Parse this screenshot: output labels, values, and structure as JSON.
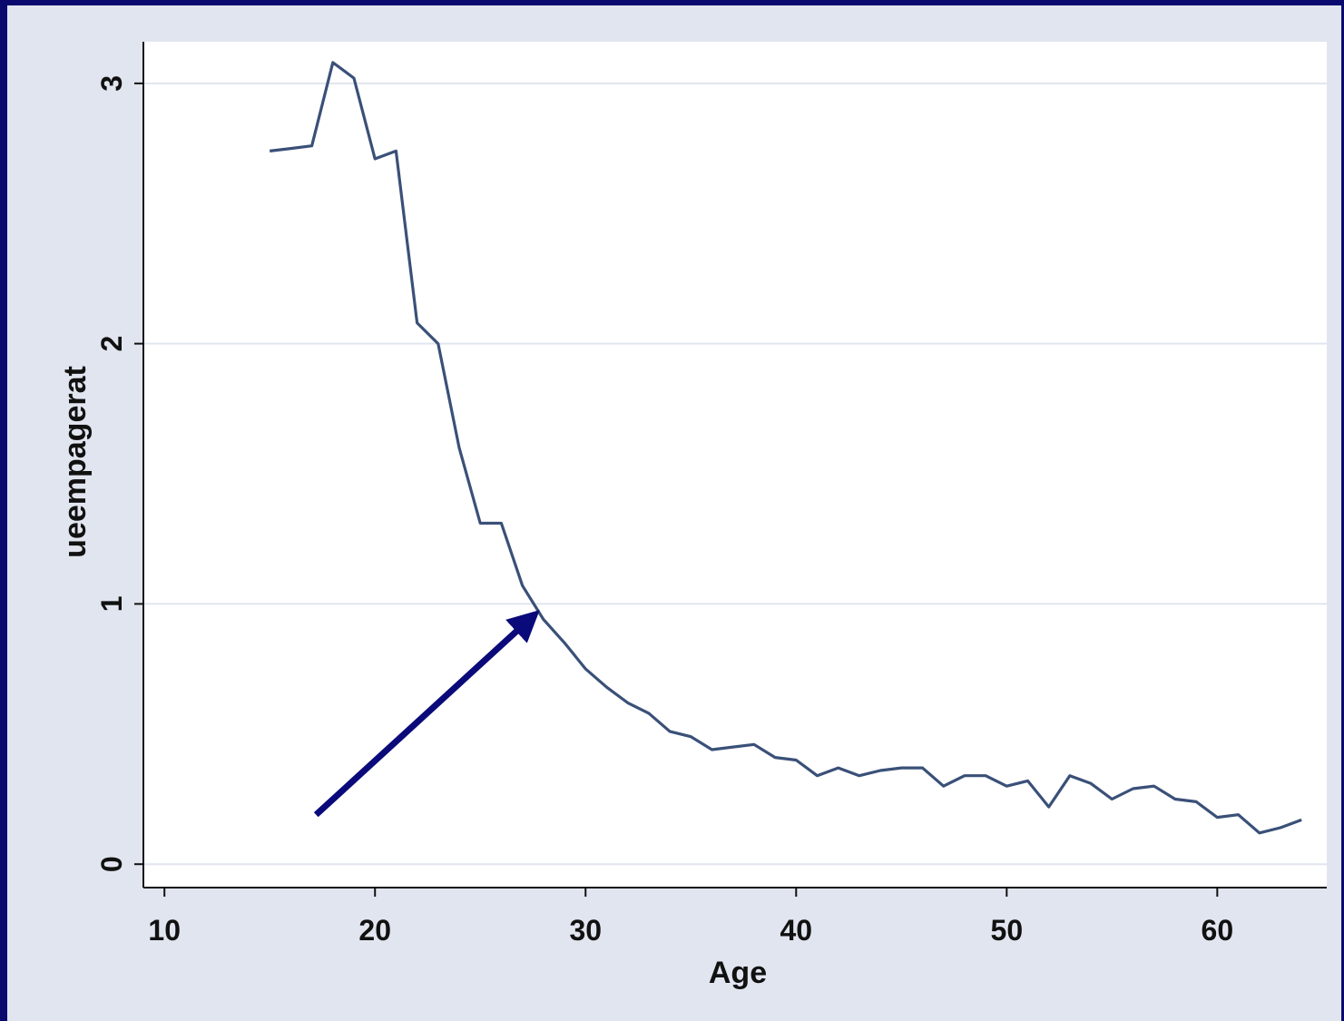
{
  "chart_data": {
    "type": "line",
    "xlabel": "Age",
    "ylabel": "ueempagerat",
    "xlim": [
      9,
      65.2
    ],
    "ylim": [
      -0.09,
      3.16
    ],
    "xticks": [
      10,
      20,
      30,
      40,
      50,
      60
    ],
    "yticks": [
      0,
      1,
      2,
      3
    ],
    "grid": true,
    "colors": {
      "page_border": "#0a0a6e",
      "frame_background": "#e1e5ef",
      "plot_background": "#ffffff",
      "gridline": "#e1e5ef",
      "line": "#3a5078",
      "arrow": "#0a0a7a"
    },
    "series": [
      {
        "x": [
          15,
          16,
          17,
          18,
          19,
          20,
          21,
          22,
          23,
          24,
          25,
          26,
          27,
          28,
          29,
          30,
          31,
          32,
          33,
          34,
          35,
          36,
          37,
          38,
          39,
          40,
          41,
          42,
          43,
          44,
          45,
          46,
          47,
          48,
          49,
          50,
          51,
          52,
          53,
          54,
          55,
          56,
          57,
          58,
          59,
          60,
          61,
          62,
          63,
          64
        ],
        "values": [
          2.74,
          2.75,
          2.76,
          3.08,
          3.02,
          2.71,
          2.74,
          2.08,
          2.0,
          1.6,
          1.31,
          1.31,
          1.07,
          0.94,
          0.85,
          0.75,
          0.68,
          0.62,
          0.58,
          0.51,
          0.49,
          0.44,
          0.45,
          0.46,
          0.41,
          0.4,
          0.34,
          0.37,
          0.34,
          0.36,
          0.37,
          0.37,
          0.3,
          0.34,
          0.34,
          0.3,
          0.32,
          0.22,
          0.34,
          0.31,
          0.25,
          0.29,
          0.3,
          0.25,
          0.24,
          0.18,
          0.19,
          0.12,
          0.14,
          0.17
        ]
      }
    ],
    "annotations": [
      {
        "type": "arrow",
        "from": [
          17.2,
          0.19
        ],
        "to": [
          27.6,
          0.96
        ]
      }
    ]
  }
}
